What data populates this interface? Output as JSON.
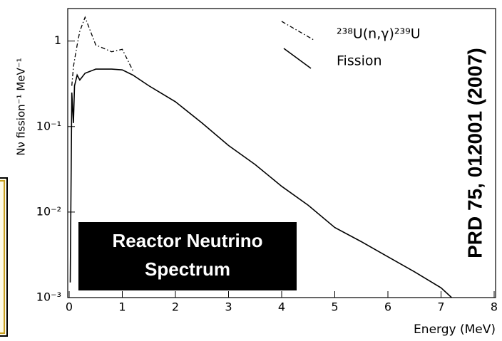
{
  "chart_data": {
    "type": "line",
    "x_label": "Energy (MeV)",
    "y_label": "Nν fission⁻¹ MeV⁻¹",
    "log_y": true,
    "xlim": [
      0,
      8
    ],
    "xticks": [
      0,
      1,
      2,
      3,
      4,
      5,
      6,
      7,
      8
    ],
    "ylim": [
      0.001,
      2.4
    ],
    "yticks": [
      {
        "value": 0.001,
        "label": "10⁻³"
      },
      {
        "value": 0.01,
        "label": "10⁻²"
      },
      {
        "value": 0.1,
        "label": "10⁻¹"
      },
      1
    ],
    "x": [
      0.02,
      0.05,
      0.08,
      0.1,
      0.15,
      0.2,
      0.3,
      0.5,
      0.8,
      1.0,
      1.2,
      1.5,
      2.0,
      2.5,
      3.0,
      3.5,
      4.0,
      4.5,
      5.0,
      5.5,
      6.0,
      6.5,
      7.0,
      7.2
    ],
    "series": [
      {
        "name": "²³⁸U(n,γ)²³⁹U",
        "color": "#000000",
        "style": "dashdot",
        "values": [
          null,
          0.3,
          0.5,
          0.6,
          0.9,
          1.3,
          1.9,
          0.9,
          0.75,
          0.8,
          0.45,
          null,
          null,
          null,
          null,
          null,
          null,
          null,
          null,
          null,
          null,
          null,
          null,
          null
        ]
      },
      {
        "name": "Fission",
        "color": "#000000",
        "style": "solid",
        "values": [
          0.0015,
          0.25,
          0.11,
          0.3,
          0.4,
          0.35,
          0.42,
          0.47,
          0.47,
          0.46,
          0.4,
          0.3,
          0.195,
          0.11,
          0.06,
          0.036,
          0.02,
          0.012,
          0.0066,
          0.0045,
          0.003,
          0.002,
          0.0013,
          0.001
        ]
      }
    ],
    "box_text": [
      "Reactor Neutrino",
      "Spectrum"
    ],
    "citation": "PRD 75, 012001 (2007)"
  }
}
